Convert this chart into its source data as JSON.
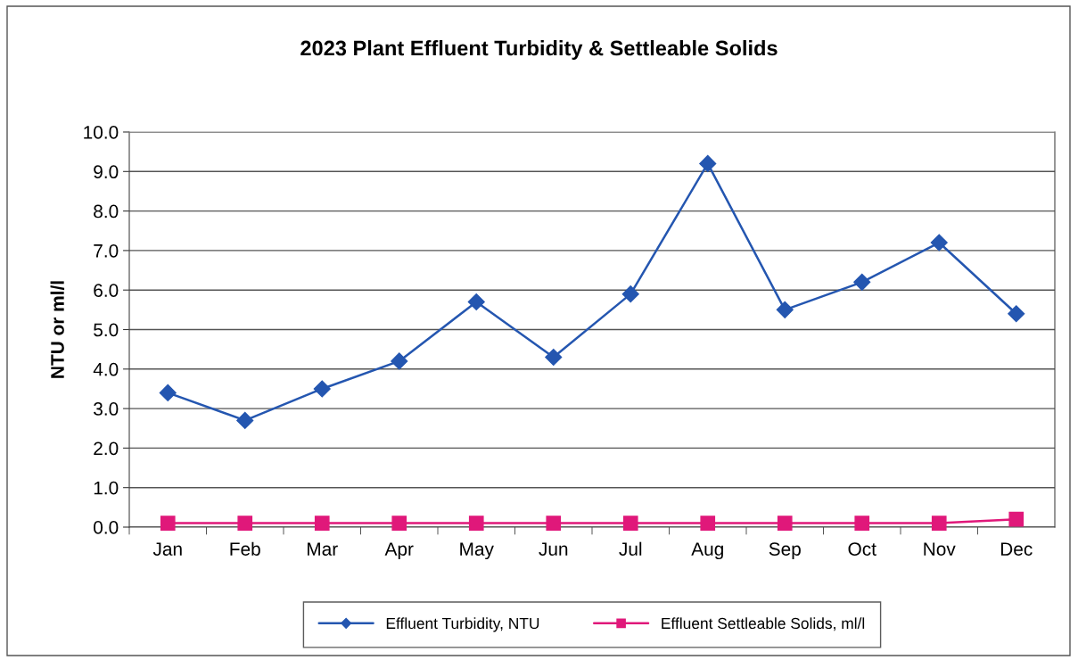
{
  "chart_data": {
    "type": "line",
    "title": "2023 Plant Effluent Turbidity & Settleable Solids",
    "ylabel": "NTU or ml/l",
    "categories": [
      "Jan",
      "Feb",
      "Mar",
      "Apr",
      "May",
      "Jun",
      "Jul",
      "Aug",
      "Sep",
      "Oct",
      "Nov",
      "Dec"
    ],
    "series": [
      {
        "name": "Effluent Turbidity, NTU",
        "color": "#2456b0",
        "marker": "diamond",
        "values": [
          3.4,
          2.7,
          3.5,
          4.2,
          5.7,
          4.3,
          5.9,
          9.2,
          5.5,
          6.2,
          7.2,
          5.4
        ]
      },
      {
        "name": "Effluent Settleable Solids, ml/l",
        "color": "#e0187a",
        "marker": "square",
        "values": [
          0.1,
          0.1,
          0.1,
          0.1,
          0.1,
          0.1,
          0.1,
          0.1,
          0.1,
          0.1,
          0.1,
          0.2
        ]
      }
    ],
    "ylim": [
      0,
      10
    ],
    "yticks": [
      {
        "value": 0,
        "label": "0.0"
      },
      {
        "value": 1,
        "label": "1.0"
      },
      {
        "value": 2,
        "label": "2.0"
      },
      {
        "value": 3,
        "label": "3.0"
      },
      {
        "value": 4,
        "label": "4.0"
      },
      {
        "value": 5,
        "label": "5.0"
      },
      {
        "value": 6,
        "label": "6.0"
      },
      {
        "value": 7,
        "label": "7.0"
      },
      {
        "value": 8,
        "label": "8.0"
      },
      {
        "value": 9,
        "label": "9.0"
      },
      {
        "value": 10,
        "label": "10.0"
      }
    ],
    "grid": "y",
    "legend": "bottom",
    "line_style": "solid"
  }
}
